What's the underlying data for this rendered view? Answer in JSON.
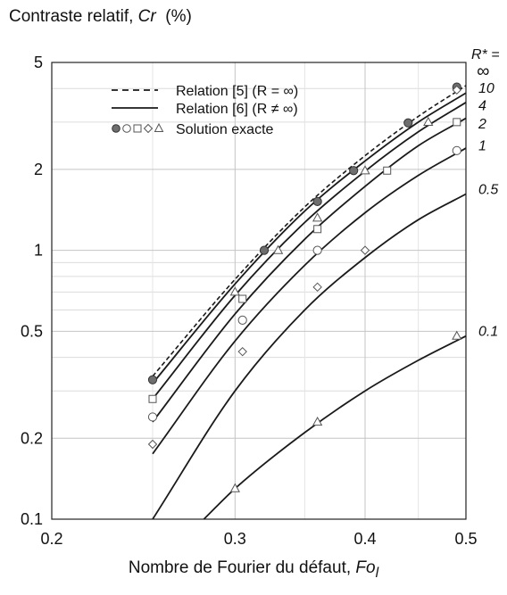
{
  "chart_data": {
    "type": "line",
    "title_prefix": "Contraste relatif, ",
    "title_var": "Cr",
    "title_unit": "(%)",
    "xlabel_prefix": "Nombre de Fourier du défaut, ",
    "xlabel_var": "Fo",
    "xlabel_sub": "l",
    "x_scale": "log",
    "y_scale": "log",
    "xlim": [
      0.2,
      0.5
    ],
    "ylim": [
      0.1,
      5
    ],
    "x_ticks": [
      0.2,
      0.3,
      0.4,
      0.5
    ],
    "x_tick_labels": [
      "0.2",
      "0.3",
      "0.4",
      "0.5"
    ],
    "y_ticks": [
      0.1,
      0.2,
      0.5,
      1,
      2,
      5
    ],
    "y_tick_labels": [
      "0.1",
      "0.2",
      "0.5",
      "1",
      "2",
      "5"
    ],
    "grid": true,
    "legend_position": "top-left",
    "legend": [
      {
        "label": "Relation [5]  (R = ∞)",
        "style": "dashed"
      },
      {
        "label": "Relation [6]  (R ≠ ∞)",
        "style": "solid"
      },
      {
        "label": "Solution exacte",
        "style": "markers",
        "symbols": "●○□◇△"
      }
    ],
    "r_header": "R* =",
    "series": [
      {
        "name": "∞",
        "style": "dashed",
        "label_y": 4.6,
        "x": [
          0.25,
          0.3,
          0.35,
          0.4,
          0.45,
          0.5
        ],
        "y": [
          0.34,
          0.78,
          1.45,
          2.25,
          3.15,
          4.1
        ]
      },
      {
        "name": "10",
        "style": "solid",
        "label_y": 4.0,
        "x": [
          0.25,
          0.3,
          0.35,
          0.4,
          0.45,
          0.5
        ],
        "y": [
          0.32,
          0.75,
          1.4,
          2.15,
          3.0,
          3.85
        ]
      },
      {
        "name": "4",
        "style": "solid",
        "label_y": 3.45,
        "x": [
          0.25,
          0.3,
          0.35,
          0.4,
          0.45,
          0.5
        ],
        "y": [
          0.28,
          0.68,
          1.27,
          1.97,
          2.76,
          3.55
        ]
      },
      {
        "name": "2",
        "style": "solid",
        "label_y": 2.95,
        "x": [
          0.25,
          0.3,
          0.35,
          0.4,
          0.45,
          0.5
        ],
        "y": [
          0.23,
          0.58,
          1.1,
          1.73,
          2.45,
          3.1
        ]
      },
      {
        "name": "1",
        "style": "solid",
        "label_y": 2.45,
        "x": [
          0.25,
          0.3,
          0.35,
          0.4,
          0.45,
          0.5
        ],
        "y": [
          0.175,
          0.46,
          0.88,
          1.38,
          1.9,
          2.4
        ]
      },
      {
        "name": "0.5",
        "style": "solid",
        "label_y": 1.68,
        "x": [
          0.25,
          0.3,
          0.35,
          0.4,
          0.45,
          0.5
        ],
        "y": [
          0.1,
          0.3,
          0.6,
          0.94,
          1.3,
          1.62
        ]
      },
      {
        "name": "0.1",
        "style": "solid",
        "label_y": 0.5,
        "x": [
          0.28,
          0.3,
          0.35,
          0.4,
          0.45,
          0.5
        ],
        "y": [
          0.1,
          0.13,
          0.21,
          0.3,
          0.39,
          0.48
        ]
      }
    ],
    "markers": [
      {
        "symbol": "filled-circle",
        "points": [
          [
            0.25,
            0.33
          ],
          [
            0.32,
            1.0
          ],
          [
            0.36,
            1.52
          ],
          [
            0.39,
            1.98
          ],
          [
            0.44,
            2.98
          ],
          [
            0.49,
            4.05
          ]
        ]
      },
      {
        "symbol": "open-circle",
        "points": [
          [
            0.25,
            0.24
          ],
          [
            0.305,
            0.55
          ],
          [
            0.36,
            1.0
          ],
          [
            0.49,
            2.35
          ]
        ]
      },
      {
        "symbol": "open-square",
        "points": [
          [
            0.25,
            0.28
          ],
          [
            0.305,
            0.66
          ],
          [
            0.36,
            1.2
          ],
          [
            0.42,
            1.98
          ],
          [
            0.49,
            3.0
          ]
        ]
      },
      {
        "symbol": "open-diamond",
        "points": [
          [
            0.25,
            0.19
          ],
          [
            0.305,
            0.42
          ],
          [
            0.36,
            0.73
          ],
          [
            0.4,
            1.0
          ],
          [
            0.49,
            3.95
          ]
        ]
      },
      {
        "symbol": "open-triangle",
        "points": [
          [
            0.3,
            0.13
          ],
          [
            0.3,
            0.7
          ],
          [
            0.33,
            1.0
          ],
          [
            0.36,
            0.23
          ],
          [
            0.36,
            1.32
          ],
          [
            0.4,
            1.98
          ],
          [
            0.46,
            3.0
          ],
          [
            0.49,
            0.48
          ]
        ]
      }
    ]
  }
}
